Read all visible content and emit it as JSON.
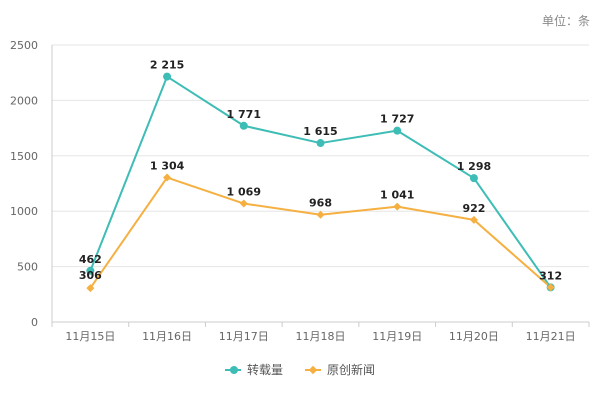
{
  "chart_data": {
    "type": "line",
    "unit_label": "单位：条",
    "categories": [
      "11月15日",
      "11月16日",
      "11月17日",
      "11月18日",
      "11月19日",
      "11月20日",
      "11月21日"
    ],
    "ylim": [
      0,
      2500
    ],
    "y_ticks": [
      0,
      500,
      1000,
      1500,
      2000,
      2500
    ],
    "grid": true,
    "legend_position": "bottom",
    "series": [
      {
        "name": "转载量",
        "values": [
          462,
          2215,
          1771,
          1615,
          1727,
          1298,
          312
        ],
        "labels": [
          "462",
          "2 215",
          "1 771",
          "1 615",
          "1 727",
          "1 298",
          "312"
        ],
        "color": "#3dbdb5",
        "marker": "circle"
      },
      {
        "name": "原创新闻",
        "values": [
          306,
          1304,
          1069,
          968,
          1041,
          922,
          312
        ],
        "labels": [
          "306",
          "1 304",
          "1 069",
          "968",
          "1 041",
          "922",
          ""
        ],
        "color": "#f5b041",
        "marker": "diamond"
      }
    ]
  }
}
